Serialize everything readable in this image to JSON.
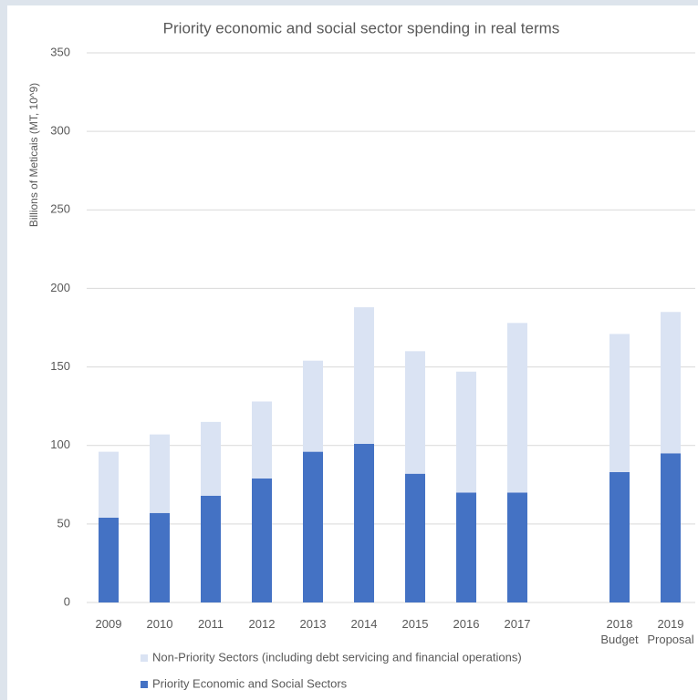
{
  "chart_data": {
    "type": "stacked-bar",
    "title": "Priority economic and social sector spending in real terms",
    "y_label": "Billions of Meticais (MT, 10^9)",
    "categories": [
      "2009",
      "2010",
      "2011",
      "2012",
      "2013",
      "2014",
      "2015",
      "2016",
      "2017",
      null,
      "2018\nBudget",
      "2019\nProposal"
    ],
    "series": [
      {
        "name": "Priority Economic and Social Sectors",
        "color": "#4472c4",
        "values": [
          54,
          57,
          68,
          79,
          96,
          101,
          82,
          70,
          70,
          null,
          83,
          95
        ]
      },
      {
        "name": "Non-Priority Sectors (including debt servicing and financial operations)",
        "color": "#dae3f3",
        "values": [
          42,
          50,
          47,
          49,
          58,
          87,
          78,
          77,
          108,
          null,
          88,
          90
        ]
      }
    ],
    "ylim": [
      0,
      350
    ],
    "yticks": [
      0,
      50,
      100,
      150,
      200,
      250,
      300,
      350
    ],
    "grid": true
  }
}
